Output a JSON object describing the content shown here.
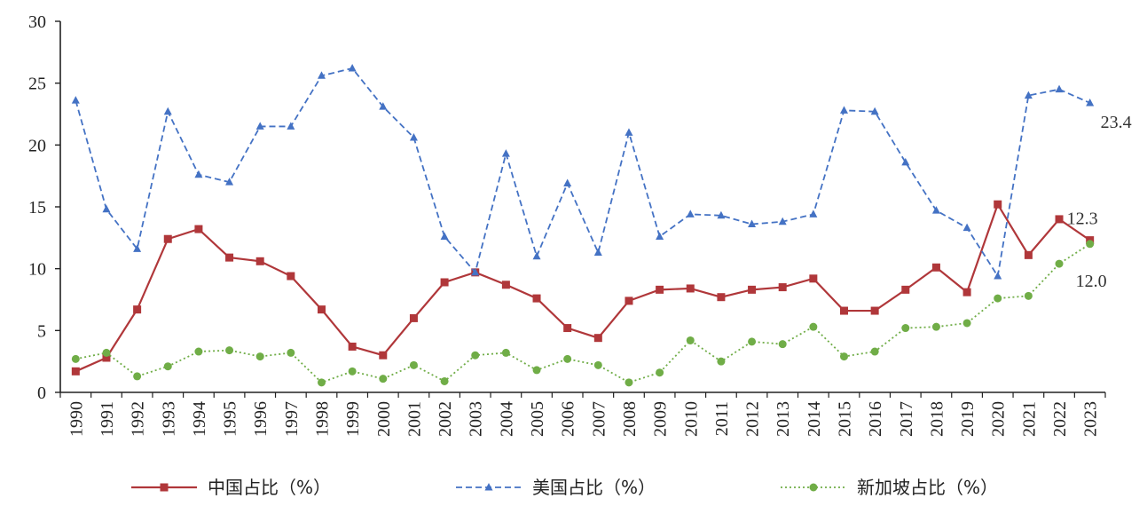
{
  "chart_data": {
    "type": "line",
    "title": "",
    "xlabel": "",
    "ylabel": "",
    "ylim": [
      0,
      30
    ],
    "yticks": [
      0,
      5,
      10,
      15,
      20,
      25,
      30
    ],
    "grid": false,
    "legend_position": "bottom",
    "categories": [
      "1990",
      "1991",
      "1992",
      "1993",
      "1994",
      "1995",
      "1996",
      "1997",
      "1998",
      "1999",
      "2000",
      "2001",
      "2002",
      "2003",
      "2004",
      "2005",
      "2006",
      "2007",
      "2008",
      "2009",
      "2010",
      "2011",
      "2012",
      "2013",
      "2014",
      "2015",
      "2016",
      "2017",
      "2018",
      "2019",
      "2020",
      "2021",
      "2022",
      "2023"
    ],
    "series": [
      {
        "name": "中国占比（%）",
        "color": "#b0373a",
        "style": "solid",
        "marker": "square",
        "values": [
          1.7,
          2.8,
          6.7,
          12.4,
          13.2,
          10.9,
          10.6,
          9.4,
          6.7,
          3.7,
          3.0,
          6.0,
          8.9,
          9.7,
          8.7,
          7.6,
          5.2,
          4.4,
          7.4,
          8.3,
          8.4,
          7.7,
          8.3,
          8.5,
          9.2,
          6.6,
          6.6,
          8.3,
          10.1,
          8.1,
          15.2,
          11.1,
          14.0,
          12.3
        ],
        "end_label": "12.3"
      },
      {
        "name": "美国占比（%）",
        "color": "#4472c4",
        "style": "dashed",
        "marker": "triangle",
        "values": [
          23.6,
          14.8,
          11.6,
          22.7,
          17.6,
          17.0,
          21.5,
          21.5,
          25.6,
          26.2,
          23.1,
          20.6,
          12.6,
          9.7,
          19.3,
          11.0,
          16.9,
          11.3,
          21.0,
          12.6,
          14.4,
          14.3,
          13.6,
          13.8,
          14.4,
          22.8,
          22.7,
          18.6,
          14.7,
          13.3,
          9.4,
          24.0,
          24.5,
          23.4
        ],
        "end_label": "23.4"
      },
      {
        "name": "新加坡占比（%）",
        "color": "#70ad47",
        "style": "dotted",
        "marker": "circle",
        "values": [
          2.7,
          3.2,
          1.3,
          2.1,
          3.3,
          3.4,
          2.9,
          3.2,
          0.8,
          1.7,
          1.1,
          2.2,
          0.9,
          3.0,
          3.2,
          1.8,
          2.7,
          2.2,
          0.8,
          1.6,
          4.2,
          2.5,
          4.1,
          3.9,
          5.3,
          2.9,
          3.3,
          5.2,
          5.3,
          5.6,
          7.6,
          7.8,
          10.4,
          12.0
        ],
        "end_label": "12.0"
      }
    ]
  }
}
